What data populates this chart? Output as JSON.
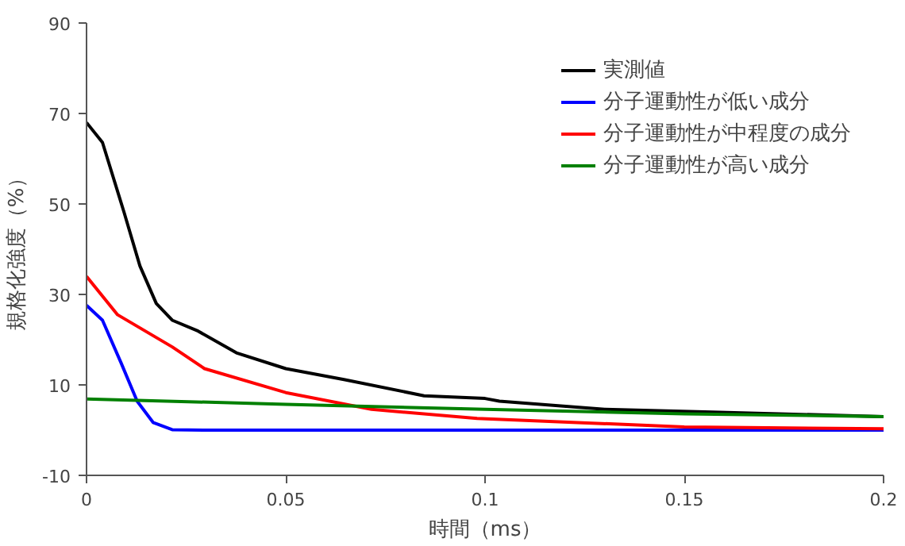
{
  "chart_data": {
    "type": "line",
    "xlabel": "時間（ms）",
    "ylabel": "規格化強度（%）",
    "xlim": [
      0,
      0.2
    ],
    "ylim": [
      -10,
      90
    ],
    "xticks": [
      0,
      0.05,
      0.1,
      0.15,
      0.2
    ],
    "yticks": [
      -10,
      10,
      30,
      50,
      70,
      90
    ],
    "grid": false,
    "legend": "top right",
    "marker": "none",
    "line_style": "solid",
    "series": [
      {
        "name": "実測値",
        "color": "#000000",
        "x": [
          0,
          0.004,
          0.0094,
          0.0134,
          0.0175,
          0.0215,
          0.028,
          0.0376,
          0.05,
          0.0646,
          0.0847,
          0.1,
          0.1036,
          0.13,
          0.157,
          0.2
        ],
        "values": [
          68,
          63.6,
          48.2,
          36.3,
          28,
          24.3,
          21.9,
          17.1,
          13.6,
          11.2,
          7.6,
          7,
          6.4,
          4.6,
          4,
          3
        ]
      },
      {
        "name": "分子運動性が低い成分",
        "color": "#0000ff",
        "x": [
          0,
          0.004,
          0.0087,
          0.0127,
          0.0167,
          0.0215,
          0.03,
          0.1,
          0.2
        ],
        "values": [
          27.6,
          24.3,
          14.8,
          6.4,
          1.7,
          0.1,
          0,
          0,
          0
        ]
      },
      {
        "name": "分子運動性が中程度の成分",
        "color": "#ff0000",
        "x": [
          0,
          0.0078,
          0.0215,
          0.0296,
          0.05,
          0.0715,
          0.098,
          0.15,
          0.2
        ],
        "values": [
          34,
          25.5,
          18.4,
          13.6,
          8.3,
          4.6,
          2.6,
          0.7,
          0.3
        ]
      },
      {
        "name": "分子運動性が高い成分",
        "color": "#008000",
        "x": [
          0,
          0.05,
          0.1,
          0.15,
          0.2
        ],
        "values": [
          6.9,
          5.7,
          4.6,
          3.6,
          3
        ]
      }
    ]
  }
}
